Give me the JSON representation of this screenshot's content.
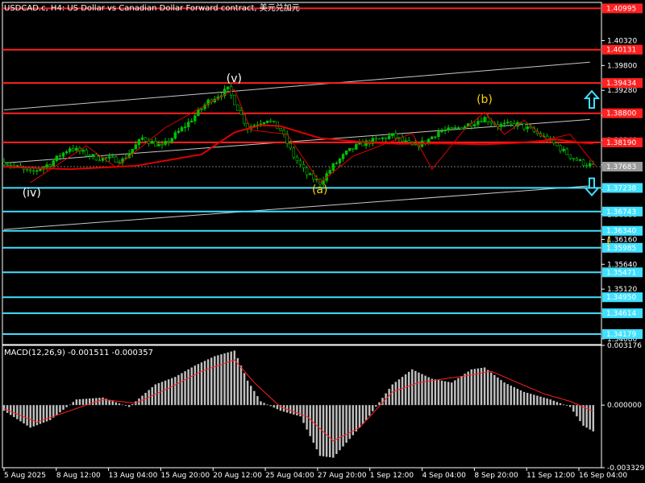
{
  "header": {
    "title": "USDCAD.c, H4:  US Dollar vs Canadian Dollar Forward contract, 美元兑加元"
  },
  "colors": {
    "background": "#000000",
    "frame": "#ffffff",
    "bull_body": "#00c000",
    "bear_body": "#000000",
    "wick": "#00c000",
    "moving_average": "#e00000",
    "resistance": "#ff2020",
    "support": "#40e0ff",
    "channel": "#c8c8c8",
    "wave_white": "#ffffff",
    "wave_yellow": "#ffd200",
    "macd_hist": "#c0c0c0",
    "macd_signal": "#ff2020",
    "current_price_tag": "#ffffff",
    "arrow": "#40e0ff"
  },
  "chart_data": [
    {
      "type": "candlestick",
      "title": "USDCAD.c, H4:  US Dollar vs Canadian Dollar Forward contract, 美元兑加元",
      "ylim": [
        1.3396,
        1.4112
      ],
      "y_ticks": [
        "1.40320",
        "1.39800",
        "1.39280",
        "1.38760",
        "1.38240",
        "1.37720",
        "1.37200",
        "1.36680",
        "1.36160",
        "1.35640",
        "1.35120",
        "1.34600",
        "1.34080"
      ],
      "x_ticks": [
        "5 Aug 2025",
        "8 Aug 12:00",
        "13 Aug 04:00",
        "15 Aug 20:00",
        "20 Aug 12:00",
        "25 Aug 04:00",
        "27 Aug 20:00",
        "1 Sep 12:00",
        "4 Sep 04:00",
        "8 Sep 20:00",
        "11 Sep 12:00",
        "16 Sep 04:00"
      ],
      "price_series": {
        "name": "",
        "index": [
          0,
          8,
          14,
          20,
          28,
          36,
          42,
          48,
          56,
          62,
          68,
          74,
          80,
          84,
          88,
          92,
          96,
          100,
          104,
          108,
          112,
          118,
          124,
          128,
          132,
          136,
          140,
          146,
          150,
          156,
          160,
          166,
          172,
          176,
          180
        ],
        "close": [
          1.3778,
          1.3755,
          1.3775,
          1.3808,
          1.3787,
          1.3782,
          1.3828,
          1.381,
          1.386,
          1.3905,
          1.393,
          1.385,
          1.3868,
          1.3845,
          1.379,
          1.3752,
          1.3735,
          1.377,
          1.3797,
          1.3815,
          1.3822,
          1.3833,
          1.3811,
          1.382,
          1.3842,
          1.3845,
          1.3854,
          1.387,
          1.3855,
          1.3857,
          1.3845,
          1.3822,
          1.379,
          1.3775,
          1.3768
        ]
      },
      "moving_average": {
        "name": "",
        "index": [
          0,
          20,
          40,
          50,
          60,
          70,
          78,
          84,
          96,
          110,
          120,
          132,
          146,
          156,
          168,
          176,
          180
        ],
        "values": [
          1.3768,
          1.3763,
          1.377,
          1.3782,
          1.3794,
          1.384,
          1.3855,
          1.3853,
          1.3828,
          1.3819,
          1.3816,
          1.3817,
          1.3815,
          1.3818,
          1.3825,
          1.3818,
          1.3816
        ]
      },
      "horizontal_levels": [
        {
          "value": "1.40995",
          "kind": "resistance"
        },
        {
          "value": "1.40131",
          "kind": "resistance"
        },
        {
          "value": "1.39434",
          "kind": "resistance"
        },
        {
          "value": "1.38800",
          "kind": "resistance"
        },
        {
          "value": "1.38190",
          "kind": "resistance"
        },
        {
          "value": "1.37683",
          "kind": "current"
        },
        {
          "value": "1.37238",
          "kind": "support"
        },
        {
          "value": "1.36743",
          "kind": "support"
        },
        {
          "value": "1.36340",
          "kind": "support"
        },
        {
          "value": "1.35985",
          "kind": "support"
        },
        {
          "value": "1.35471",
          "kind": "support"
        },
        {
          "value": "1.34950",
          "kind": "support"
        },
        {
          "value": "1.34614",
          "kind": "support"
        },
        {
          "value": "1.34179",
          "kind": "support"
        }
      ],
      "wave_labels": [
        {
          "text": "(iv)",
          "index": 8,
          "color": "white"
        },
        {
          "text": "(v)",
          "index": 70,
          "color": "white"
        },
        {
          "text": "(a)",
          "index": 96,
          "color": "yellow"
        },
        {
          "text": "(b)",
          "index": 146,
          "color": "yellow"
        },
        {
          "text": "(",
          "index": 183,
          "color": "yellow"
        }
      ],
      "zigzag": {
        "index": [
          8,
          25,
          34,
          49,
          70,
          75,
          86,
          96,
          106,
          124,
          130,
          140,
          146,
          152,
          158,
          165,
          172,
          180
        ],
        "values": [
          1.3735,
          1.3812,
          1.3767,
          1.385,
          1.393,
          1.3845,
          1.3836,
          1.3735,
          1.379,
          1.3838,
          1.3763,
          1.3847,
          1.3882,
          1.3836,
          1.3865,
          1.3825,
          1.3836,
          1.3768
        ]
      },
      "arrows": [
        {
          "direction": "up",
          "near_value": 1.3908
        },
        {
          "direction": "down",
          "near_value": 1.3727
        }
      ]
    },
    {
      "type": "bar",
      "title": "MACD(12,26,9) -0.001511 -0.000357",
      "ylim": [
        -0.003329,
        0.003176
      ],
      "y_ticks": [
        "0.003176",
        "0.000000",
        "-0.003329"
      ],
      "series": [
        {
          "name": "MACD(12,26,9)",
          "index": [
            0,
            8,
            14,
            22,
            30,
            38,
            46,
            52,
            58,
            64,
            70,
            74,
            78,
            84,
            90,
            96,
            100,
            104,
            110,
            118,
            124,
            130,
            136,
            142,
            146,
            152,
            158,
            166,
            172,
            176,
            180
          ],
          "values": [
            -0.0003,
            -0.0012,
            -0.0008,
            0.0003,
            0.0004,
            -0.0001,
            0.0011,
            0.0015,
            0.0021,
            0.0026,
            0.0029,
            0.0013,
            0.0002,
            -0.0003,
            -0.0006,
            -0.0027,
            -0.0028,
            -0.002,
            -0.0008,
            0.0011,
            0.0019,
            0.0014,
            0.0012,
            0.0019,
            0.002,
            0.0012,
            0.0007,
            0.0003,
            -0.0001,
            -0.0011,
            -0.0015
          ]
        },
        {
          "name": "Signal",
          "index": [
            0,
            10,
            20,
            30,
            40,
            50,
            60,
            70,
            76,
            84,
            92,
            100,
            108,
            118,
            126,
            134,
            142,
            148,
            156,
            164,
            172,
            180
          ],
          "values": [
            -0.0002,
            -0.0009,
            -0.0003,
            0.0003,
            0.0001,
            0.0009,
            0.0018,
            0.0024,
            0.0012,
            -0.0001,
            -0.0006,
            -0.0019,
            -0.0012,
            0.0007,
            0.0012,
            0.0014,
            0.0016,
            0.0018,
            0.0012,
            0.0006,
            0.0002,
            -0.0004
          ]
        }
      ]
    }
  ]
}
